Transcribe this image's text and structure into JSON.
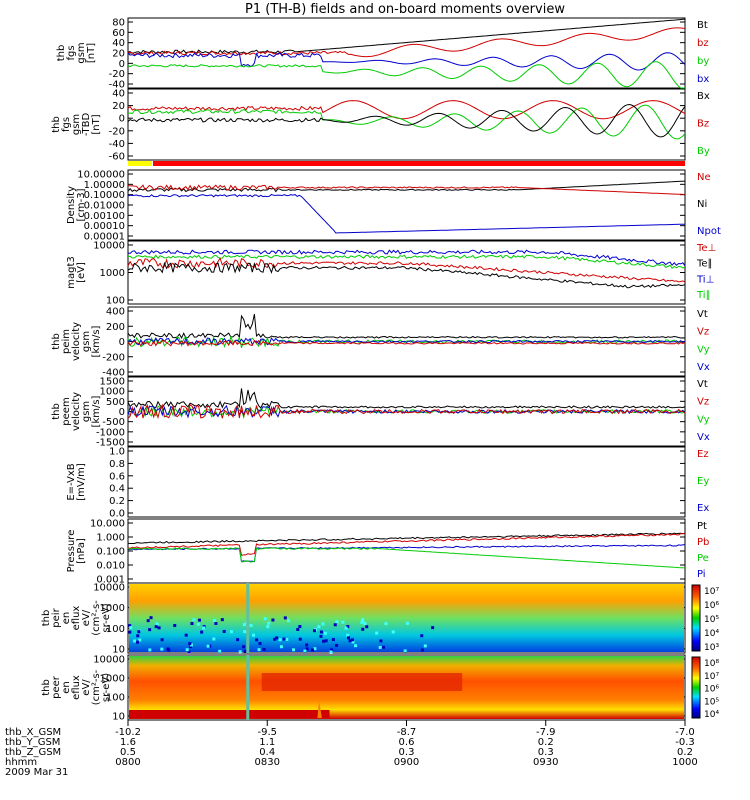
{
  "title": "P1 (TH-B) fields and on-board moments overview",
  "colors": {
    "black": "#000000",
    "red": "#d00000",
    "green": "#00cc00",
    "blue": "#0000cc",
    "orange": "#ff8000"
  },
  "chart_data": {
    "type": "line",
    "time_axis": {
      "row_labels": [
        "thb_X_GSM",
        "thb_Y_GSM",
        "thb_Z_GSM",
        "hhmm",
        "2009 Mar 31"
      ],
      "ticks": [
        {
          "x": "-10.2",
          "y": "1.6",
          "z": "0.5",
          "t": "0800"
        },
        {
          "x": "-9.5",
          "y": "1.1",
          "z": "0.4",
          "t": "0830"
        },
        {
          "x": "-8.7",
          "y": "0.6",
          "z": "0.3",
          "t": "0900"
        },
        {
          "x": "-7.9",
          "y": "0.2",
          "z": "0.3",
          "t": "0930"
        },
        {
          "x": "-7.0",
          "y": "-0.3",
          "z": "0.2",
          "t": "1000"
        }
      ]
    },
    "panels": [
      {
        "id": "fgs_gsm",
        "ylabel": [
          "thb",
          "fgs",
          "gsm",
          "[nT]"
        ],
        "yticks": [
          "80",
          "60",
          "40",
          "20",
          "0",
          "-20",
          "-40"
        ],
        "ylim": [
          -40,
          80
        ],
        "legend": [
          "Bt",
          "bz",
          "by",
          "bx"
        ],
        "legend_colors": [
          "black",
          "red",
          "green",
          "blue"
        ]
      },
      {
        "id": "fgs_gsm_tbd",
        "ylabel": [
          "thb",
          "fgs",
          "gsm",
          "-TBD",
          "[nT]"
        ],
        "yticks": [
          "40",
          "20",
          "0",
          "-20",
          "-40",
          "-60"
        ],
        "ylim": [
          -70,
          40
        ],
        "legend": [
          "Bx",
          "Bz",
          "By"
        ],
        "legend_colors": [
          "black",
          "red",
          "green"
        ]
      },
      {
        "id": "density",
        "ylabel": [
          "Density",
          "[cm-3]"
        ],
        "yticks": [
          "10.00000",
          "1.00000",
          "0.10000",
          "0.01000",
          "0.00100",
          "0.00010",
          "0.00001"
        ],
        "log": true,
        "legend": [
          "Ne",
          "Ni",
          "Npot"
        ],
        "legend_colors": [
          "red",
          "black",
          "blue"
        ]
      },
      {
        "id": "temperature",
        "ylabel": [
          "magt3",
          "[eV]"
        ],
        "yticks": [
          "10000",
          "1000",
          "100"
        ],
        "log": true,
        "legend": [
          "Te⊥",
          "Te∥",
          "Ti⊥",
          "Ti∥"
        ],
        "legend_colors": [
          "red",
          "black",
          "blue",
          "green"
        ]
      },
      {
        "id": "peim_velocity",
        "ylabel": [
          "thb",
          "peim",
          "velocity",
          "gsm",
          "[km/s]"
        ],
        "yticks": [
          "400",
          "200",
          "0",
          "-200",
          "-400"
        ],
        "ylim": [
          -400,
          400
        ],
        "legend": [
          "Vt",
          "Vz",
          "Vy",
          "Vx"
        ],
        "legend_colors": [
          "black",
          "red",
          "green",
          "blue"
        ]
      },
      {
        "id": "peem_velocity",
        "ylabel": [
          "thb",
          "peem",
          "velocity",
          "gsm",
          "[km/s]"
        ],
        "yticks": [
          "1500",
          "1000",
          "500",
          "0",
          "-500",
          "-1000",
          "-1500"
        ],
        "ylim": [
          -1500,
          1500
        ],
        "legend": [
          "Vt",
          "Vz",
          "Vy",
          "Vx"
        ],
        "legend_colors": [
          "black",
          "red",
          "green",
          "blue"
        ]
      },
      {
        "id": "efield",
        "ylabel": [
          "E=-VxB",
          "[mV/m]"
        ],
        "yticks": [
          "1.0",
          "0.8",
          "0.6",
          "0.4",
          "0.2",
          "0.0"
        ],
        "ylim": [
          0,
          1
        ],
        "legend": [
          "Ez",
          "Ey",
          "Ex"
        ],
        "legend_colors": [
          "red",
          "green",
          "blue"
        ]
      },
      {
        "id": "pressure",
        "ylabel": [
          "Pressure",
          "[nPa]"
        ],
        "yticks": [
          "10.000",
          "1.000",
          "0.100",
          "0.010",
          "0.001"
        ],
        "log": true,
        "legend": [
          "Pt",
          "Pb",
          "Pe",
          "Pi"
        ],
        "legend_colors": [
          "black",
          "red",
          "green",
          "blue"
        ]
      },
      {
        "id": "peir_spec",
        "ylabel": [
          "thb",
          "peir",
          "en",
          "eflux",
          "eV/",
          "(cm²-s-",
          "sr-eV)"
        ],
        "yticks": [
          "10000",
          "1000",
          "100",
          "10"
        ],
        "colorbar": [
          "10⁷",
          "10⁶",
          "10⁵",
          "10⁴",
          "10³"
        ]
      },
      {
        "id": "peer_spec",
        "ylabel": [
          "thb",
          "peer",
          "en",
          "eflux",
          "eV/",
          "(cm²-s-",
          "sr-eV)"
        ],
        "yticks": [
          "10000",
          "1000",
          "100",
          "10"
        ],
        "colorbar": [
          "10⁸",
          "10⁷",
          "10⁶",
          "10⁵",
          "10⁴"
        ]
      }
    ]
  }
}
